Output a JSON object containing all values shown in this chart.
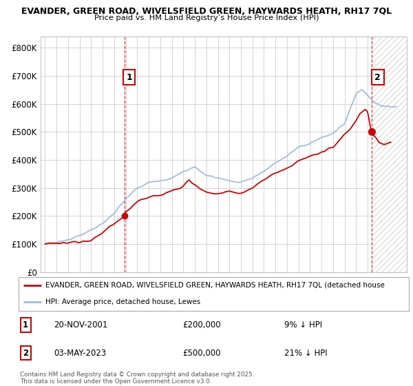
{
  "title_line1": "EVANDER, GREEN ROAD, WIVELSFIELD GREEN, HAYWARDS HEATH, RH17 7QL",
  "title_line2": "Price paid vs. HM Land Registry’s House Price Index (HPI)",
  "legend_entry1": "EVANDER, GREEN ROAD, WIVELSFIELD GREEN, HAYWARDS HEATH, RH17 7QL (detached house",
  "legend_entry2": "HPI: Average price, detached house, Lewes",
  "annotation1_label": "1",
  "annotation1_date": "20-NOV-2001",
  "annotation1_price": "£200,000",
  "annotation1_note": "9% ↓ HPI",
  "annotation2_label": "2",
  "annotation2_date": "03-MAY-2023",
  "annotation2_price": "£500,000",
  "annotation2_note": "21% ↓ HPI",
  "footer": "Contains HM Land Registry data © Crown copyright and database right 2025.\nThis data is licensed under the Open Government Licence v3.0.",
  "ylim": [
    0,
    840000
  ],
  "yticks": [
    0,
    100000,
    200000,
    300000,
    400000,
    500000,
    600000,
    700000,
    800000
  ],
  "ytick_labels": [
    "£0",
    "£100K",
    "£200K",
    "£300K",
    "£400K",
    "£500K",
    "£600K",
    "£700K",
    "£800K"
  ],
  "xlim_start": 1994.6,
  "xlim_end": 2026.4,
  "bg_color": "#ffffff",
  "grid_color": "#cccccc",
  "red_color": "#cc0000",
  "blue_color": "#99bbdd",
  "vline_color": "#cc0000",
  "marker1_x": 2001.9,
  "marker1_y": 200000,
  "marker2_x": 2023.33,
  "marker2_y": 500000,
  "hatch_start": 2023.5,
  "hatch_color": "#dddddd"
}
